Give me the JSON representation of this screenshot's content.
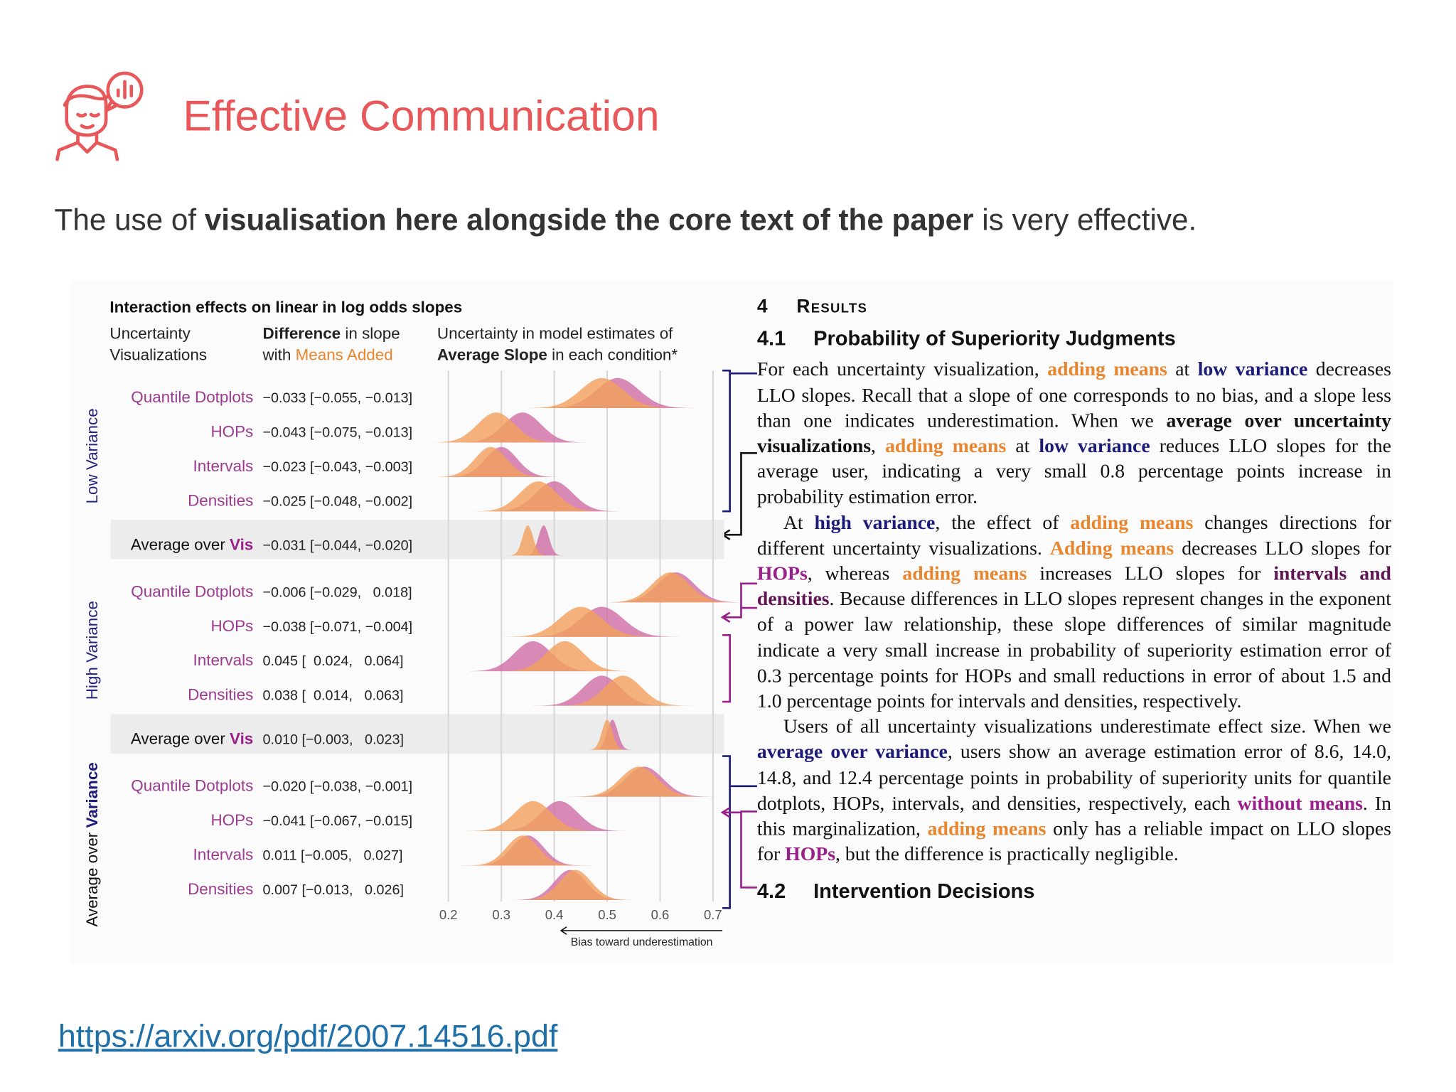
{
  "header": {
    "title": "Effective Communication"
  },
  "intro": [
    {
      "text": "The use of "
    },
    {
      "text": "visualisation here alongside the core text of the paper",
      "style": "bold"
    },
    {
      "text": " is very effective."
    }
  ],
  "figure": {
    "title": "Interaction effects on linear in log odds slopes",
    "columns": [
      [
        [
          {
            "text": "Uncertainty"
          }
        ],
        [
          {
            "text": "Visualizations"
          }
        ]
      ],
      [
        [
          {
            "text": "Difference",
            "style": "bold"
          },
          {
            "text": " in slope"
          }
        ],
        [
          {
            "text": "with "
          },
          {
            "text": "Means Added",
            "style": "accent"
          }
        ]
      ],
      [
        [
          {
            "text": "Uncertainty in model estimates of"
          }
        ],
        [
          {
            "text": "Average Slope",
            "style": "bold"
          },
          {
            "text": " in each condition*"
          }
        ]
      ]
    ],
    "dist_colors": [
      "#f2a05e",
      "#cf6fa6"
    ],
    "groups": [
      {
        "label": [
          {
            "text": "Low Variance",
            "style": "navy-plain"
          }
        ],
        "rows": [
          {
            "name": "Quantile Dotplots",
            "diff": "−0.033 [−0.055, −0.013]",
            "dist": [
              {
                "mean": 0.49,
                "sd": 0.04
              },
              {
                "mean": 0.52,
                "sd": 0.04
              }
            ]
          },
          {
            "name": "HOPs",
            "diff": "−0.043 [−0.075, −0.013]",
            "dist": [
              {
                "mean": 0.29,
                "sd": 0.035
              },
              {
                "mean": 0.34,
                "sd": 0.035
              }
            ]
          },
          {
            "name": "Intervals",
            "diff": "−0.023 [−0.043, −0.003]",
            "dist": [
              {
                "mean": 0.28,
                "sd": 0.03
              },
              {
                "mean": 0.3,
                "sd": 0.03
              }
            ]
          },
          {
            "name": "Densities",
            "diff": "−0.025 [−0.048, −0.002]",
            "dist": [
              {
                "mean": 0.37,
                "sd": 0.035
              },
              {
                "mean": 0.4,
                "sd": 0.035
              }
            ]
          }
        ],
        "average": {
          "name": [
            {
              "text": "Average over "
            },
            {
              "text": "Vis",
              "style": "purple"
            }
          ],
          "diff": "−0.031 [−0.044, −0.020]",
          "dist": [
            {
              "mean": 0.35,
              "sd": 0.01
            },
            {
              "mean": 0.38,
              "sd": 0.01
            }
          ]
        }
      },
      {
        "label": [
          {
            "text": "High Variance",
            "style": "navy-plain"
          }
        ],
        "rows": [
          {
            "name": "Quantile Dotplots",
            "diff": "−0.006 [−0.029,   0.018]",
            "dist": [
              {
                "mean": 0.62,
                "sd": 0.035
              },
              {
                "mean": 0.63,
                "sd": 0.035
              }
            ]
          },
          {
            "name": "HOPs",
            "diff": "−0.038 [−0.071, −0.004]",
            "dist": [
              {
                "mean": 0.45,
                "sd": 0.04
              },
              {
                "mean": 0.49,
                "sd": 0.04
              }
            ]
          },
          {
            "name": "Intervals",
            "diff": "0.045 [  0.024,   0.064]",
            "dist": [
              {
                "mean": 0.42,
                "sd": 0.035
              },
              {
                "mean": 0.36,
                "sd": 0.035
              }
            ]
          },
          {
            "name": "Densities",
            "diff": "0.038 [  0.014,   0.063]",
            "dist": [
              {
                "mean": 0.53,
                "sd": 0.035
              },
              {
                "mean": 0.49,
                "sd": 0.035
              }
            ]
          }
        ],
        "average": {
          "name": [
            {
              "text": "Average over "
            },
            {
              "text": "Vis",
              "style": "purple"
            }
          ],
          "diff": "0.010 [−0.003,   0.023]",
          "dist": [
            {
              "mean": 0.5,
              "sd": 0.01
            },
            {
              "mean": 0.51,
              "sd": 0.01
            }
          ]
        }
      },
      {
        "label": [
          {
            "text": "Average over "
          },
          {
            "text": "Variance",
            "style": "navy"
          }
        ],
        "rows": [
          {
            "name": "Quantile Dotplots",
            "diff": "−0.020 [−0.038, −0.001]",
            "dist": [
              {
                "mean": 0.56,
                "sd": 0.035
              },
              {
                "mean": 0.57,
                "sd": 0.035
              }
            ]
          },
          {
            "name": "HOPs",
            "diff": "−0.041 [−0.067, −0.015]",
            "dist": [
              {
                "mean": 0.36,
                "sd": 0.035
              },
              {
                "mean": 0.41,
                "sd": 0.035
              }
            ]
          },
          {
            "name": "Intervals",
            "diff": "0.011 [−0.005,   0.027]",
            "dist": [
              {
                "mean": 0.34,
                "sd": 0.03
              },
              {
                "mean": 0.35,
                "sd": 0.03
              }
            ]
          },
          {
            "name": "Densities",
            "diff": "0.007 [−0.013,   0.026]",
            "dist": [
              {
                "mean": 0.44,
                "sd": 0.03
              },
              {
                "mean": 0.43,
                "sd": 0.03
              }
            ]
          }
        ]
      }
    ],
    "xlim": [
      0.2,
      0.7
    ],
    "xticks": [
      0.2,
      0.3,
      0.4,
      0.5,
      0.6,
      0.7
    ],
    "x_caption": "Bias toward underestimation"
  },
  "paper": {
    "headings": [
      {
        "number": "4",
        "text": "Results"
      },
      {
        "number": "4.1",
        "text": "Probability of Superiority Judgments"
      }
    ],
    "paragraphs": [
      [
        {
          "text": "For each uncertainty visualization, "
        },
        {
          "text": "adding means",
          "style": "orange"
        },
        {
          "text": " at "
        },
        {
          "text": "low variance",
          "style": "navy"
        },
        {
          "text": " decreases LLO slopes. Recall that a slope of one corresponds to no bias, and a slope less than one indicates underestimation. When we "
        },
        {
          "text": "average over uncertainty visualizations",
          "style": "bold"
        },
        {
          "text": ", "
        },
        {
          "text": "adding means",
          "style": "orange"
        },
        {
          "text": " at "
        },
        {
          "text": "low variance",
          "style": "navy"
        },
        {
          "text": " reduces LLO slopes for the average user, indicating a very small 0.8 percentage points increase in probability estimation error."
        }
      ],
      [
        {
          "text": "At "
        },
        {
          "text": "high variance",
          "style": "navy"
        },
        {
          "text": ", the effect of "
        },
        {
          "text": "adding means",
          "style": "orange"
        },
        {
          "text": " changes directions for different uncertainty visualizations. "
        },
        {
          "text": "Adding means",
          "style": "orange"
        },
        {
          "text": " decreases LLO slopes for "
        },
        {
          "text": "HOPs",
          "style": "purple"
        },
        {
          "text": ", whereas "
        },
        {
          "text": "adding means",
          "style": "orange"
        },
        {
          "text": " increases LLO slopes for "
        },
        {
          "text": "intervals and densities",
          "style": "plum"
        },
        {
          "text": ". Because differences in LLO slopes represent changes in the exponent of a power law relationship, these slope differences of similar magnitude indicate a very small increase in probability of superiority estimation error of 0.3 percentage points for HOPs and small reductions in error of about 1.5 and 1.0 percentage points for intervals and densities, respectively."
        }
      ],
      [
        {
          "text": "Users of all uncertainty visualizations underestimate effect size. When we "
        },
        {
          "text": "average over variance",
          "style": "navy"
        },
        {
          "text": ", users show an average estimation error of 8.6, 14.0, 14.8, and 12.4 percentage points in probability of superiority units for quantile dotplots, HOPs, intervals, and densities, respectively, each "
        },
        {
          "text": "without means",
          "style": "purple"
        },
        {
          "text": ". In this marginalization, "
        },
        {
          "text": "adding means",
          "style": "orange"
        },
        {
          "text": " only has a reliable impact on LLO slopes for "
        },
        {
          "text": "HOPs",
          "style": "purple"
        },
        {
          "text": ", but the difference is practically negligible."
        }
      ]
    ],
    "next_heading": {
      "number": "4.2",
      "text": "Intervention Decisions"
    }
  },
  "link": "https://arxiv.org/pdf/2007.14516.pdf"
}
